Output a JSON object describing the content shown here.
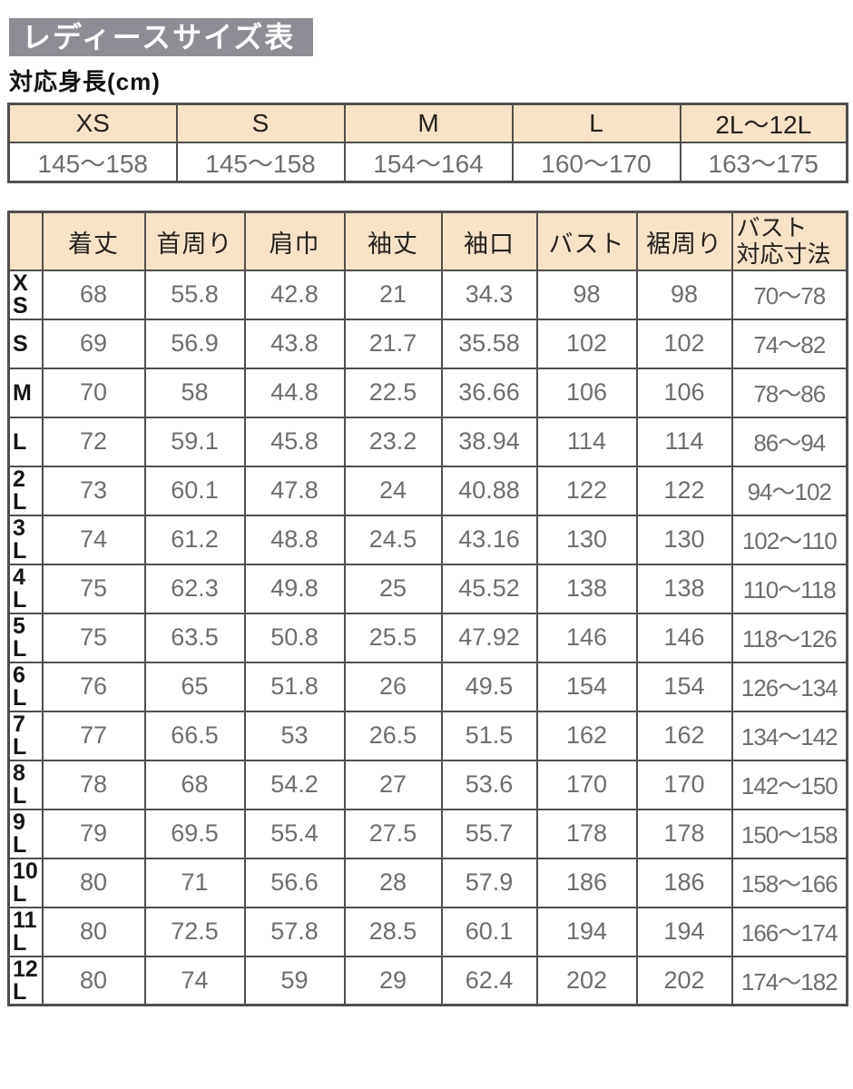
{
  "page": {
    "title": "レディースサイズ表",
    "subtitle": "対応身長(cm)"
  },
  "colors": {
    "title_bar_bg": "#8d8d95",
    "title_text": "#ffffff",
    "table_header_bg": "#f8e3c6",
    "table_border": "#4f4f4f",
    "value_text": "#6e6e6e"
  },
  "height_table": {
    "columns": [
      "XS",
      "S",
      "M",
      "L",
      "2L〜12L"
    ],
    "values": [
      "145〜158",
      "145〜158",
      "154〜164",
      "160〜170",
      "163〜175"
    ]
  },
  "size_table": {
    "columns": [
      "着丈",
      "首周り",
      "肩巾",
      "袖丈",
      "袖口",
      "バスト",
      "裾周り",
      "バスト\n対応寸法"
    ],
    "rows": [
      {
        "size": "XS",
        "values": [
          "68",
          "55.8",
          "42.8",
          "21",
          "34.3",
          "98",
          "98",
          "70〜78"
        ]
      },
      {
        "size": "S",
        "values": [
          "69",
          "56.9",
          "43.8",
          "21.7",
          "35.58",
          "102",
          "102",
          "74〜82"
        ]
      },
      {
        "size": "M",
        "values": [
          "70",
          "58",
          "44.8",
          "22.5",
          "36.66",
          "106",
          "106",
          "78〜86"
        ]
      },
      {
        "size": "L",
        "values": [
          "72",
          "59.1",
          "45.8",
          "23.2",
          "38.94",
          "114",
          "114",
          "86〜94"
        ]
      },
      {
        "size": "2L",
        "values": [
          "73",
          "60.1",
          "47.8",
          "24",
          "40.88",
          "122",
          "122",
          "94〜102"
        ]
      },
      {
        "size": "3L",
        "values": [
          "74",
          "61.2",
          "48.8",
          "24.5",
          "43.16",
          "130",
          "130",
          "102〜110"
        ]
      },
      {
        "size": "4L",
        "values": [
          "75",
          "62.3",
          "49.8",
          "25",
          "45.52",
          "138",
          "138",
          "110〜118"
        ]
      },
      {
        "size": "5L",
        "values": [
          "75",
          "63.5",
          "50.8",
          "25.5",
          "47.92",
          "146",
          "146",
          "118〜126"
        ]
      },
      {
        "size": "6L",
        "values": [
          "76",
          "65",
          "51.8",
          "26",
          "49.5",
          "154",
          "154",
          "126〜134"
        ]
      },
      {
        "size": "7L",
        "values": [
          "77",
          "66.5",
          "53",
          "26.5",
          "51.5",
          "162",
          "162",
          "134〜142"
        ]
      },
      {
        "size": "8L",
        "values": [
          "78",
          "68",
          "54.2",
          "27",
          "53.6",
          "170",
          "170",
          "142〜150"
        ]
      },
      {
        "size": "9L",
        "values": [
          "79",
          "69.5",
          "55.4",
          "27.5",
          "55.7",
          "178",
          "178",
          "150〜158"
        ]
      },
      {
        "size": "10L",
        "values": [
          "80",
          "71",
          "56.6",
          "28",
          "57.9",
          "186",
          "186",
          "158〜166"
        ]
      },
      {
        "size": "11L",
        "values": [
          "80",
          "72.5",
          "57.8",
          "28.5",
          "60.1",
          "194",
          "194",
          "166〜174"
        ]
      },
      {
        "size": "12L",
        "values": [
          "80",
          "74",
          "59",
          "29",
          "62.4",
          "202",
          "202",
          "174〜182"
        ]
      }
    ]
  }
}
